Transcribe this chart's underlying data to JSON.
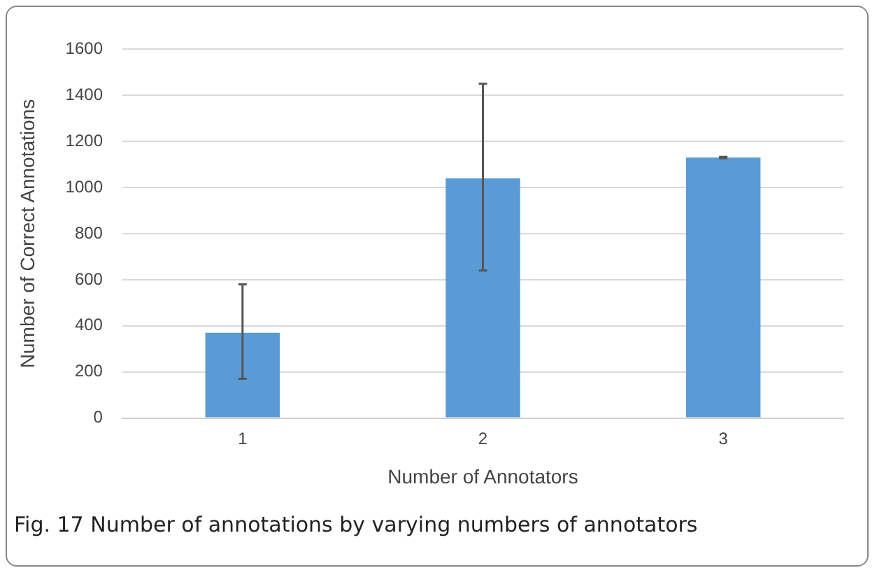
{
  "chart_data": {
    "type": "bar",
    "categories": [
      "1",
      "2",
      "3"
    ],
    "values": [
      370,
      1040,
      1130
    ],
    "errors": [
      [
        170,
        580
      ],
      [
        640,
        1450
      ],
      [
        1127,
        1133
      ]
    ],
    "color": "#5b9bd5",
    "xlabel": "Number of Annotators",
    "ylabel": "Number of Correct Annotations",
    "ylim": [
      0,
      1600
    ],
    "yticks": [
      0,
      200,
      400,
      600,
      800,
      1000,
      1200,
      1400,
      1600
    ],
    "grid": "y",
    "legend": false,
    "annotations": [
      "Fig. 17 Number of annotations by varying numbers of annotators"
    ]
  }
}
